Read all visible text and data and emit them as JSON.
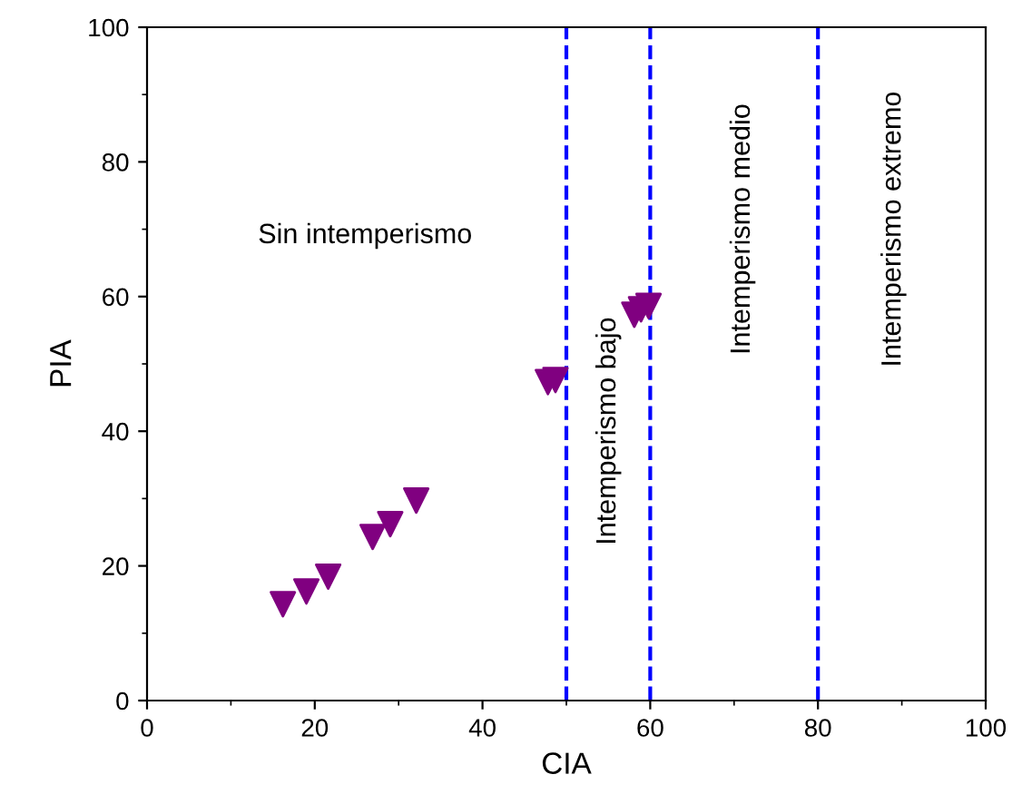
{
  "chart_data": {
    "type": "scatter",
    "xlabel": "CIA",
    "ylabel": "PIA",
    "x": [
      16.2,
      19.0,
      21.6,
      26.9,
      29.0,
      32.1,
      47.8,
      48.7,
      58.1,
      58.9,
      59.8
    ],
    "series": [
      {
        "color": "#800080",
        "values": [
          14.3,
          16.2,
          18.4,
          24.3,
          26.2,
          29.7,
          47.3,
          47.6,
          57.3,
          58.1,
          58.6
        ]
      }
    ],
    "marker": "triangle",
    "xlim": [
      0,
      100
    ],
    "ylim": [
      0,
      100
    ],
    "xticks": [
      0,
      20,
      40,
      60,
      80,
      100
    ],
    "yticks": [
      0,
      20,
      40,
      60,
      80,
      100
    ],
    "grid": false,
    "legend": false,
    "ref_lines": [
      {
        "axis": "x",
        "value": 50,
        "color": "#0000ff",
        "line_style": "dashed"
      },
      {
        "axis": "x",
        "value": 60,
        "color": "#0000ff",
        "line_style": "dashed"
      },
      {
        "axis": "x",
        "value": 80,
        "color": "#0000ff",
        "line_style": "dashed"
      }
    ],
    "annotations": [
      "Sin intemperismo",
      "Intemperismo bajo",
      "Intemperismo medio",
      "Intemperismo extremo"
    ]
  }
}
